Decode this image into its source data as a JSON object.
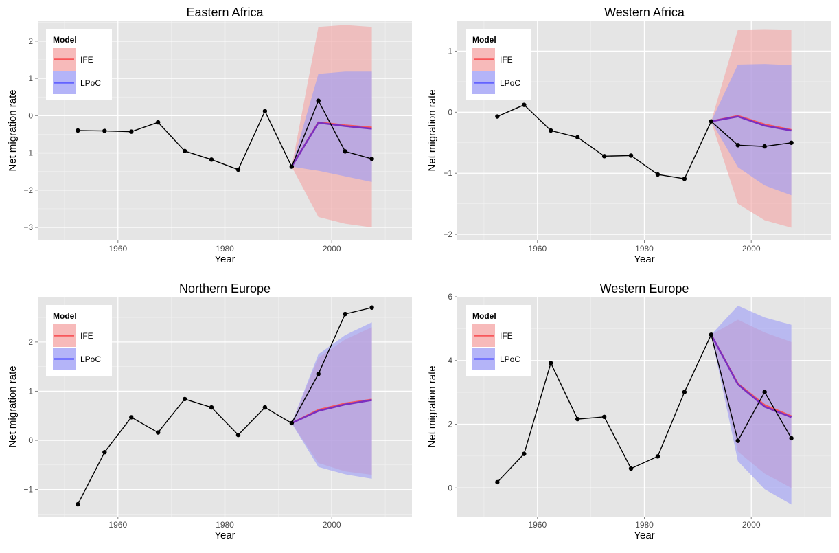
{
  "legend": {
    "title": "Model",
    "entries": [
      {
        "label": "IFE",
        "line_color": "#f8575b",
        "band_color": "#f4a3a3"
      },
      {
        "label": "LPoC",
        "line_color": "#6363ff",
        "band_color": "#9b9bf6"
      }
    ],
    "overlap_line_color": "#7b2fbf"
  },
  "chart_data": [
    {
      "type": "line",
      "title": "Eastern Africa",
      "xlabel": "Year",
      "ylabel": "Net migration rate",
      "xlim": [
        1945,
        2015
      ],
      "ylim": [
        -3.35,
        2.55
      ],
      "xticks": [
        1960,
        1980,
        2000
      ],
      "yticks": [
        -3,
        -2,
        -1,
        0,
        1,
        2
      ],
      "grid": true,
      "legend_position": "top-left",
      "observed": {
        "x": [
          1952.5,
          1957.5,
          1962.5,
          1967.5,
          1972.5,
          1977.5,
          1982.5,
          1987.5,
          1992.5,
          1997.5,
          2002.5,
          2007.5
        ],
        "y": [
          -0.4,
          -0.41,
          -0.43,
          -0.18,
          -0.95,
          -1.18,
          -1.45,
          0.12,
          -1.37,
          0.4,
          -0.96,
          -1.16
        ]
      },
      "series": [
        {
          "name": "IFE",
          "x": [
            1992.5,
            1997.5,
            2002.5,
            2007.5
          ],
          "y": [
            -1.37,
            -0.18,
            -0.26,
            -0.32
          ],
          "lower": [
            -1.37,
            -2.72,
            -2.9,
            -3.0
          ],
          "upper": [
            -1.37,
            2.38,
            2.43,
            2.38
          ]
        },
        {
          "name": "LPoC",
          "x": [
            1992.5,
            1997.5,
            2002.5,
            2007.5
          ],
          "y": [
            -1.37,
            -0.19,
            -0.28,
            -0.35
          ],
          "lower": [
            -1.37,
            -1.48,
            -1.63,
            -1.78
          ],
          "upper": [
            -1.37,
            1.12,
            1.18,
            1.18
          ]
        }
      ]
    },
    {
      "type": "line",
      "title": "Western Africa",
      "xlabel": "Year",
      "ylabel": "Net migration rate",
      "xlim": [
        1945,
        2015
      ],
      "ylim": [
        -2.1,
        1.5
      ],
      "xticks": [
        1960,
        1980,
        2000
      ],
      "yticks": [
        -2,
        -1,
        0,
        1
      ],
      "grid": true,
      "legend_position": "top-left",
      "observed": {
        "x": [
          1952.5,
          1957.5,
          1962.5,
          1967.5,
          1972.5,
          1977.5,
          1982.5,
          1987.5,
          1992.5,
          1997.5,
          2002.5,
          2007.5
        ],
        "y": [
          -0.07,
          0.12,
          -0.3,
          -0.41,
          -0.72,
          -0.71,
          -1.02,
          -1.09,
          -0.15,
          -0.54,
          -0.56,
          -0.5
        ]
      },
      "series": [
        {
          "name": "IFE",
          "x": [
            1992.5,
            1997.5,
            2002.5,
            2007.5
          ],
          "y": [
            -0.15,
            -0.06,
            -0.2,
            -0.29
          ],
          "lower": [
            -0.15,
            -1.5,
            -1.77,
            -1.89
          ],
          "upper": [
            -0.15,
            1.35,
            1.36,
            1.35
          ]
        },
        {
          "name": "LPoC",
          "x": [
            1992.5,
            1997.5,
            2002.5,
            2007.5
          ],
          "y": [
            -0.15,
            -0.07,
            -0.22,
            -0.3
          ],
          "lower": [
            -0.15,
            -0.9,
            -1.2,
            -1.36
          ],
          "upper": [
            -0.15,
            0.78,
            0.79,
            0.77
          ]
        }
      ]
    },
    {
      "type": "line",
      "title": "Northern Europe",
      "xlabel": "Year",
      "ylabel": "Net migration rate",
      "xlim": [
        1945,
        2015
      ],
      "ylim": [
        -1.55,
        2.92
      ],
      "xticks": [
        1960,
        1980,
        2000
      ],
      "yticks": [
        -1,
        0,
        1,
        2
      ],
      "grid": true,
      "legend_position": "top-left",
      "observed": {
        "x": [
          1952.5,
          1957.5,
          1962.5,
          1967.5,
          1972.5,
          1977.5,
          1982.5,
          1987.5,
          1992.5,
          1997.5,
          2002.5,
          2007.5
        ],
        "y": [
          -1.3,
          -0.24,
          0.47,
          0.16,
          0.84,
          0.67,
          0.11,
          0.67,
          0.35,
          1.35,
          2.57,
          2.7
        ]
      },
      "series": [
        {
          "name": "IFE",
          "x": [
            1992.5,
            1997.5,
            2002.5,
            2007.5
          ],
          "y": [
            0.35,
            0.62,
            0.75,
            0.83
          ],
          "lower": [
            0.35,
            -0.46,
            -0.63,
            -0.7
          ],
          "upper": [
            0.35,
            1.68,
            2.05,
            2.3
          ]
        },
        {
          "name": "LPoC",
          "x": [
            1992.5,
            1997.5,
            2002.5,
            2007.5
          ],
          "y": [
            0.35,
            0.6,
            0.73,
            0.82
          ],
          "lower": [
            0.35,
            -0.54,
            -0.69,
            -0.78
          ],
          "upper": [
            0.35,
            1.75,
            2.14,
            2.4
          ]
        }
      ]
    },
    {
      "type": "line",
      "title": "Western Europe",
      "xlabel": "Year",
      "ylabel": "Net migration rate",
      "xlim": [
        1945,
        2015
      ],
      "ylim": [
        -0.9,
        6.0
      ],
      "xticks": [
        1960,
        1980,
        2000
      ],
      "yticks": [
        0,
        2,
        4,
        6
      ],
      "grid": true,
      "legend_position": "top-left",
      "observed": {
        "x": [
          1952.5,
          1957.5,
          1962.5,
          1967.5,
          1972.5,
          1977.5,
          1982.5,
          1987.5,
          1992.5,
          1997.5,
          2002.5,
          2007.5
        ],
        "y": [
          0.18,
          1.07,
          3.92,
          2.16,
          2.23,
          0.61,
          0.99,
          3.01,
          4.81,
          1.48,
          3.01,
          1.56
        ]
      },
      "series": [
        {
          "name": "IFE",
          "x": [
            1992.5,
            1997.5,
            2002.5,
            2007.5
          ],
          "y": [
            4.81,
            3.27,
            2.6,
            2.25
          ],
          "lower": [
            4.81,
            1.14,
            0.45,
            0.0
          ],
          "upper": [
            4.81,
            5.28,
            4.88,
            4.58
          ]
        },
        {
          "name": "LPoC",
          "x": [
            1992.5,
            1997.5,
            2002.5,
            2007.5
          ],
          "y": [
            4.81,
            3.25,
            2.55,
            2.22
          ],
          "lower": [
            4.81,
            0.84,
            -0.04,
            -0.52
          ],
          "upper": [
            4.81,
            5.72,
            5.35,
            5.12
          ]
        }
      ]
    }
  ]
}
